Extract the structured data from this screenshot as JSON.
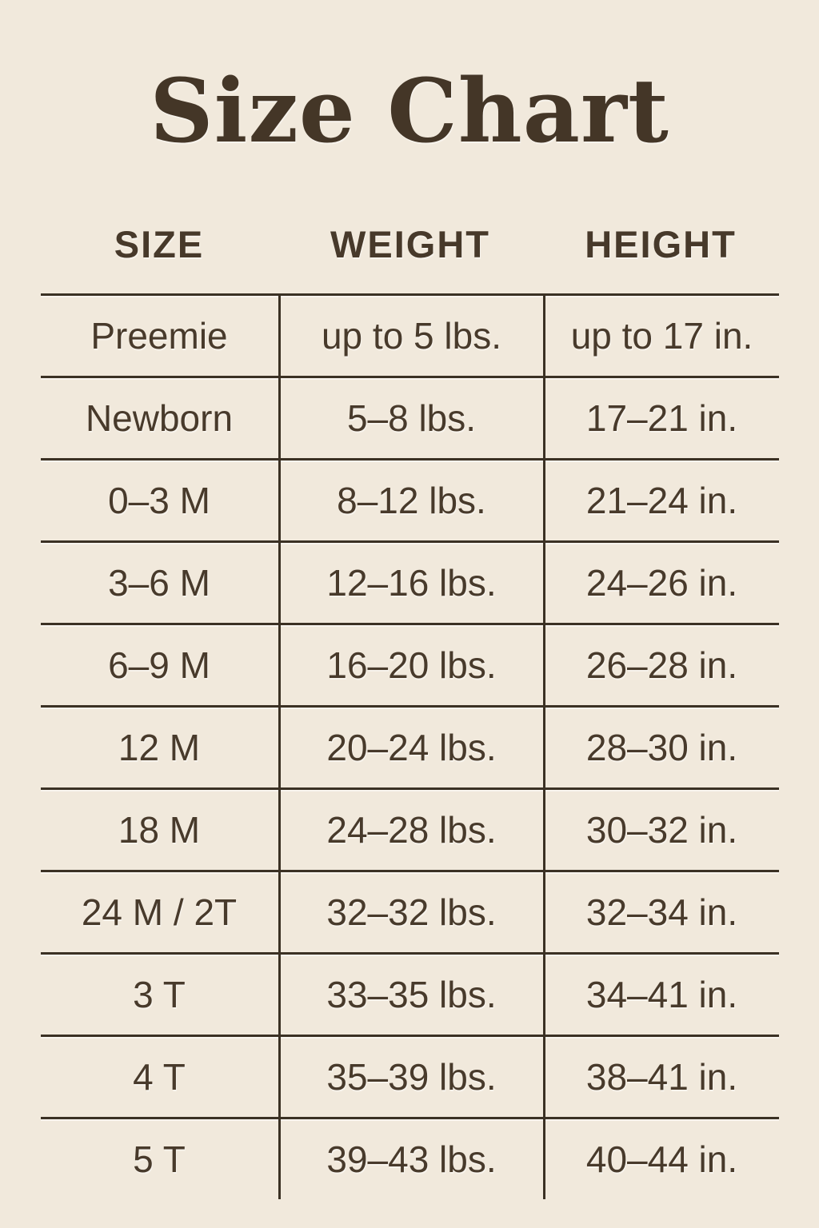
{
  "colors": {
    "background": "#f1e9dc",
    "ink": "#47392a",
    "rule": "#3b3124",
    "title": "#443627"
  },
  "chart_data": {
    "type": "table",
    "title": "Size Chart",
    "columns": [
      "SIZE",
      "WEIGHT",
      "HEIGHT"
    ],
    "rows": [
      [
        "Preemie",
        "up to 5 lbs.",
        "up to 17 in."
      ],
      [
        "Newborn",
        "5–8 lbs.",
        "17–21 in."
      ],
      [
        "0–3 M",
        "8–12 lbs.",
        "21–24 in."
      ],
      [
        "3–6 M",
        "12–16 lbs.",
        "24–26 in."
      ],
      [
        "6–9 M",
        "16–20 lbs.",
        "26–28 in."
      ],
      [
        "12 M",
        "20–24 lbs.",
        "28–30 in."
      ],
      [
        "18 M",
        "24–28 lbs.",
        "30–32 in."
      ],
      [
        "24 M / 2T",
        "32–32 lbs.",
        "32–34 in."
      ],
      [
        "3 T",
        "33–35 lbs.",
        "34–41 in."
      ],
      [
        "4 T",
        "35–39 lbs.",
        "38–41 in."
      ],
      [
        "5 T",
        "39–43 lbs.",
        "40–44 in."
      ]
    ],
    "layout": {
      "legend": "none",
      "grid": "horizontal rules between rows, two interior column separators, no outer side borders, no bottom rule",
      "header_outside_rules": true
    }
  }
}
